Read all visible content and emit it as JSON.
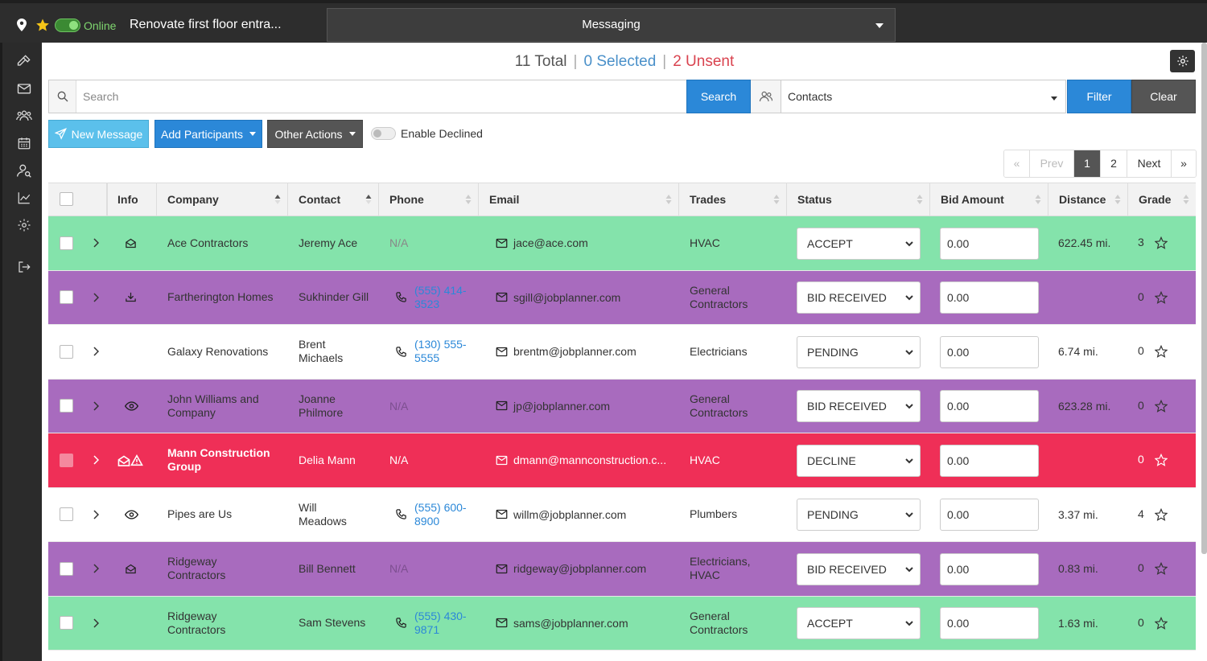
{
  "topbar": {
    "status": "Online",
    "project_title": "Renovate first floor entra...",
    "view_select": "Messaging"
  },
  "counts": {
    "total": "11 Total",
    "selected": "0 Selected",
    "unsent": "2 Unsent",
    "separator": "|"
  },
  "search": {
    "placeholder": "Search",
    "button": "Search",
    "contacts_select": "Contacts",
    "filter": "Filter",
    "clear": "Clear"
  },
  "actions": {
    "new_message": "New Message",
    "add_participants": "Add Participants",
    "other_actions": "Other Actions",
    "enable_declined": "Enable Declined"
  },
  "pagination": {
    "first": "«",
    "prev": "Prev",
    "page1": "1",
    "page2": "2",
    "next": "Next",
    "last": "»"
  },
  "table": {
    "headers": {
      "info": "Info",
      "company": "Company",
      "contact": "Contact",
      "phone": "Phone",
      "email": "Email",
      "trades": "Trades",
      "status": "Status",
      "bid_amount": "Bid Amount",
      "distance": "Distance",
      "grade": "Grade"
    },
    "rows": [
      {
        "color": "green",
        "info": "envelope-open-icon",
        "company": [
          "Ace Contractors"
        ],
        "contact": [
          "Jeremy Ace"
        ],
        "phone": "N/A",
        "email": "jace@ace.com",
        "trades": [
          "HVAC"
        ],
        "status": "ACCEPT",
        "bid": "0.00",
        "distance": "622.45 mi.",
        "grade": "3"
      },
      {
        "color": "purple",
        "info": "download-icon",
        "company": [
          "Fartherington Homes"
        ],
        "contact": [
          "Sukhinder Gill"
        ],
        "phone": [
          "(555) 414-",
          "3523"
        ],
        "email": "sgill@jobplanner.com",
        "trades": [
          "General",
          "Contractors"
        ],
        "status": "BID RECEIVED",
        "bid": "0.00",
        "distance": "",
        "grade": "0"
      },
      {
        "color": "white",
        "info": "",
        "company": [
          "Galaxy Renovations"
        ],
        "contact": [
          "Brent",
          "Michaels"
        ],
        "phone": [
          "(130) 555-",
          "5555"
        ],
        "email": "brentm@jobplanner.com",
        "trades": [
          "Electricians"
        ],
        "status": "PENDING",
        "bid": "0.00",
        "distance": "6.74 mi.",
        "grade": "0"
      },
      {
        "color": "purple",
        "info": "eye-icon",
        "company": [
          "John Williams and",
          "Company"
        ],
        "contact": [
          "Joanne",
          "Philmore"
        ],
        "phone": "N/A",
        "email": "jp@jobplanner.com",
        "trades": [
          "General",
          "Contractors"
        ],
        "status": "BID RECEIVED",
        "bid": "0.00",
        "distance": "623.28 mi.",
        "grade": "0"
      },
      {
        "color": "red",
        "info": "envelope-warning-icon",
        "company": [
          "Mann Construction",
          "Group"
        ],
        "contact": [
          "Delia Mann"
        ],
        "phone": "N/A",
        "email": "dmann@mannconstruction.c...",
        "trades": [
          "HVAC"
        ],
        "status": "DECLINE",
        "bid": "0.00",
        "distance": "",
        "grade": "0"
      },
      {
        "color": "white",
        "info": "eye-icon",
        "company": [
          "Pipes are Us"
        ],
        "contact": [
          "Will",
          "Meadows"
        ],
        "phone": [
          "(555) 600-",
          "8900"
        ],
        "email": "willm@jobplanner.com",
        "trades": [
          "Plumbers"
        ],
        "status": "PENDING",
        "bid": "0.00",
        "distance": "3.37 mi.",
        "grade": "4"
      },
      {
        "color": "purple",
        "info": "envelope-open-icon",
        "company": [
          "Ridgeway",
          "Contractors"
        ],
        "contact": [
          "Bill Bennett"
        ],
        "phone": "N/A",
        "email": "ridgeway@jobplanner.com",
        "trades": [
          "Electricians,",
          "HVAC"
        ],
        "status": "BID RECEIVED",
        "bid": "0.00",
        "distance": "0.83 mi.",
        "grade": "0"
      },
      {
        "color": "green",
        "info": "",
        "company": [
          "Ridgeway",
          "Contractors"
        ],
        "contact": [
          "Sam Stevens"
        ],
        "phone": [
          "(555) 430-",
          "9871"
        ],
        "email": "sams@jobplanner.com",
        "trades": [
          "General",
          "Contractors"
        ],
        "status": "ACCEPT",
        "bid": "0.00",
        "distance": "1.63 mi.",
        "grade": "0"
      }
    ]
  },
  "colors": {
    "green_row": "#84e3ab",
    "purple_row": "#a86bbe",
    "red_row": "#ef2f57",
    "primary": "#2b88d8",
    "info_button": "#5bc0eb"
  }
}
